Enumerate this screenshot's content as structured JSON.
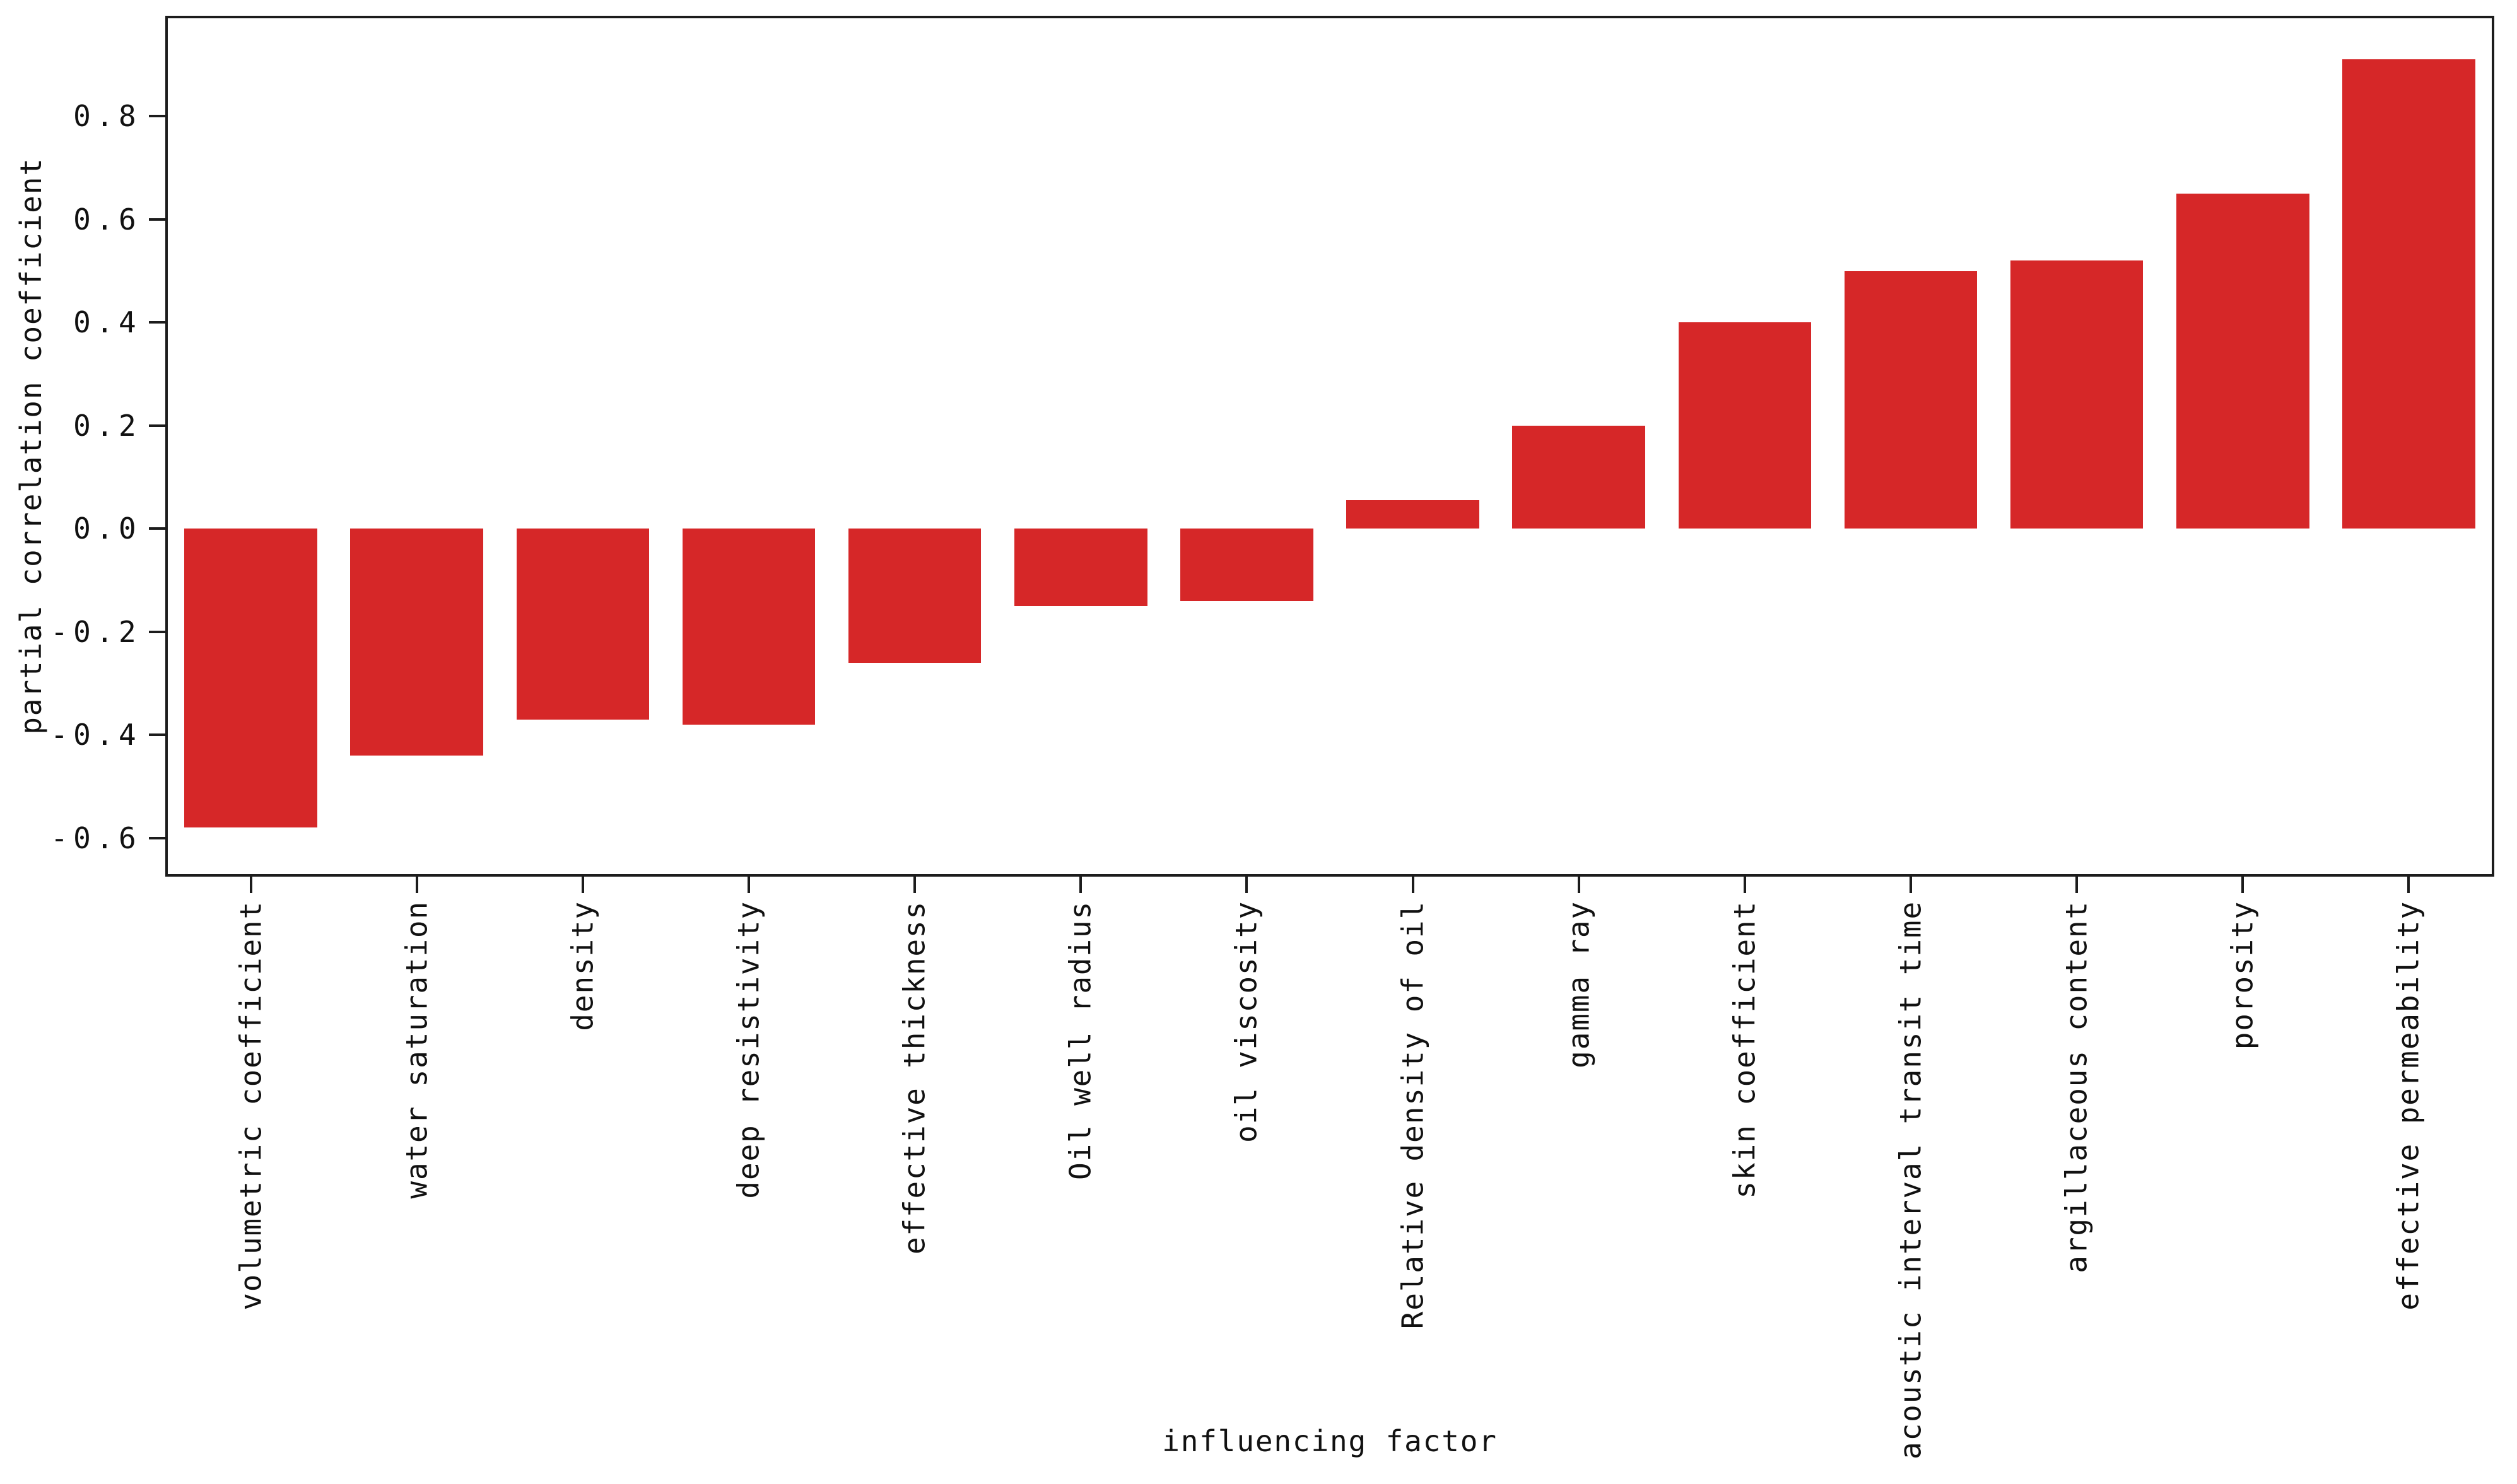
{
  "figure": {
    "background": "#ffffff",
    "bar_color": "#d62728",
    "axis_color": "#1c1c1c",
    "text_color": "#111111"
  },
  "chart_data": {
    "type": "bar",
    "title": "",
    "xlabel": "influencing factor",
    "ylabel": "partial correlation coefficient",
    "categories": [
      "volumetric coefficient",
      "water saturation",
      "density",
      "deep resistivity",
      "effective thickness",
      "Oil well radius",
      "oil viscosity",
      "Relative density of oil",
      "gamma ray",
      "skin coefficient",
      "acoustic interval transit time",
      "argillaceous content",
      "porosity",
      "effective permeability"
    ],
    "values": [
      -0.58,
      -0.44,
      -0.37,
      -0.38,
      -0.26,
      -0.15,
      -0.14,
      0.055,
      0.2,
      0.4,
      0.5,
      0.52,
      0.65,
      0.91
    ],
    "ylim": [
      -0.67,
      0.99
    ],
    "yticks": [
      0.8,
      0.6,
      0.4,
      0.2,
      0.0,
      -0.2,
      -0.4,
      -0.6
    ],
    "ytick_labels": [
      "0.8",
      "0.6",
      "0.4",
      "0.2",
      "0.0",
      "-0.2",
      "-0.4",
      "-0.6"
    ],
    "grid": false,
    "legend": "none",
    "bar_width_fraction": 0.8
  }
}
